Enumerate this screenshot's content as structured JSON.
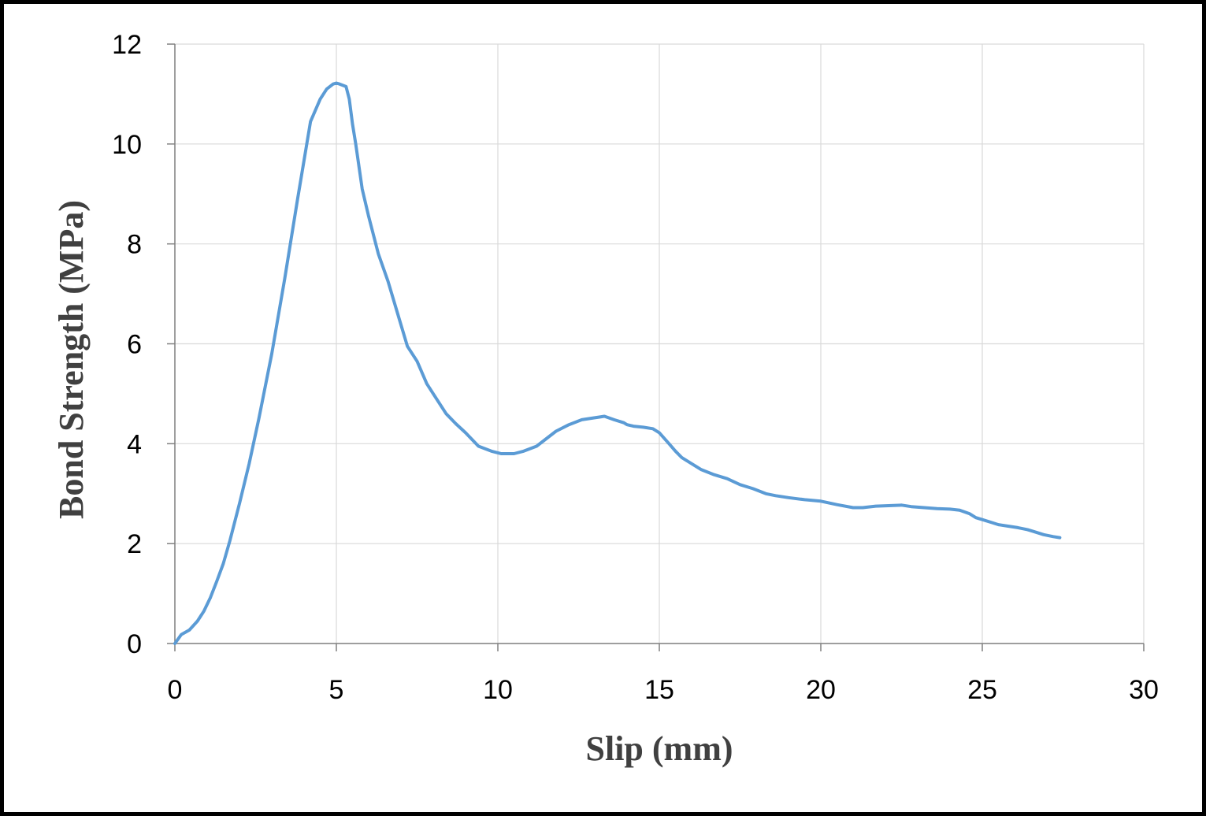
{
  "chart_data": {
    "type": "line",
    "title": "",
    "xlabel": "Slip (mm)",
    "ylabel": "Bond Strength (MPa)",
    "xlim": [
      0,
      30
    ],
    "ylim": [
      0,
      12
    ],
    "xticks": [
      0,
      5,
      10,
      15,
      20,
      25,
      30
    ],
    "yticks": [
      0,
      2,
      4,
      6,
      8,
      10,
      12
    ],
    "grid": true,
    "legend": "none",
    "line_color": "#5b9bd5",
    "series": [
      {
        "x": [
          0,
          0.2,
          0.45,
          0.7,
          0.9,
          1.1,
          1.3,
          1.5,
          1.7,
          1.8,
          2.0,
          2.3,
          2.6,
          3.0,
          3.4,
          3.8,
          4.2,
          4.5,
          4.7,
          4.9,
          5.0,
          5.1,
          5.3,
          5.4,
          5.5,
          5.6,
          5.8,
          6.0,
          6.3,
          6.6,
          6.9,
          7.2,
          7.5,
          7.8,
          8.1,
          8.4,
          8.7,
          9.0,
          9.4,
          9.8,
          10.1,
          10.3,
          10.5,
          10.8,
          11.2,
          11.5,
          11.8,
          12.2,
          12.6,
          13.0,
          13.3,
          13.6,
          13.9,
          14.0,
          14.2,
          14.5,
          14.8,
          15.0,
          15.3,
          15.5,
          15.7,
          16.0,
          16.3,
          16.7,
          17.1,
          17.5,
          17.9,
          18.3,
          18.6,
          19.0,
          19.5,
          20.0,
          20.5,
          21.0,
          21.3,
          21.7,
          22.1,
          22.5,
          22.8,
          23.2,
          23.6,
          24.0,
          24.3,
          24.6,
          24.8,
          25.0,
          25.3,
          25.5,
          25.8,
          26.1,
          26.4,
          26.6,
          26.9,
          27.2,
          27.4
        ],
        "y": [
          0,
          0.18,
          0.27,
          0.45,
          0.65,
          0.92,
          1.25,
          1.6,
          2.05,
          2.3,
          2.8,
          3.6,
          4.5,
          5.8,
          7.3,
          8.9,
          10.45,
          10.9,
          11.1,
          11.2,
          11.22,
          11.2,
          11.15,
          10.9,
          10.4,
          10.0,
          9.1,
          8.55,
          7.8,
          7.25,
          6.6,
          5.95,
          5.65,
          5.2,
          4.9,
          4.6,
          4.4,
          4.22,
          3.95,
          3.85,
          3.8,
          3.8,
          3.8,
          3.85,
          3.95,
          4.1,
          4.25,
          4.38,
          4.48,
          4.52,
          4.55,
          4.48,
          4.42,
          4.38,
          4.35,
          4.33,
          4.3,
          4.22,
          4.0,
          3.85,
          3.72,
          3.6,
          3.48,
          3.38,
          3.3,
          3.18,
          3.1,
          3.0,
          2.96,
          2.92,
          2.88,
          2.85,
          2.78,
          2.72,
          2.72,
          2.75,
          2.76,
          2.77,
          2.74,
          2.72,
          2.7,
          2.69,
          2.67,
          2.6,
          2.52,
          2.48,
          2.42,
          2.38,
          2.35,
          2.32,
          2.28,
          2.24,
          2.18,
          2.14,
          2.12
        ]
      }
    ]
  }
}
